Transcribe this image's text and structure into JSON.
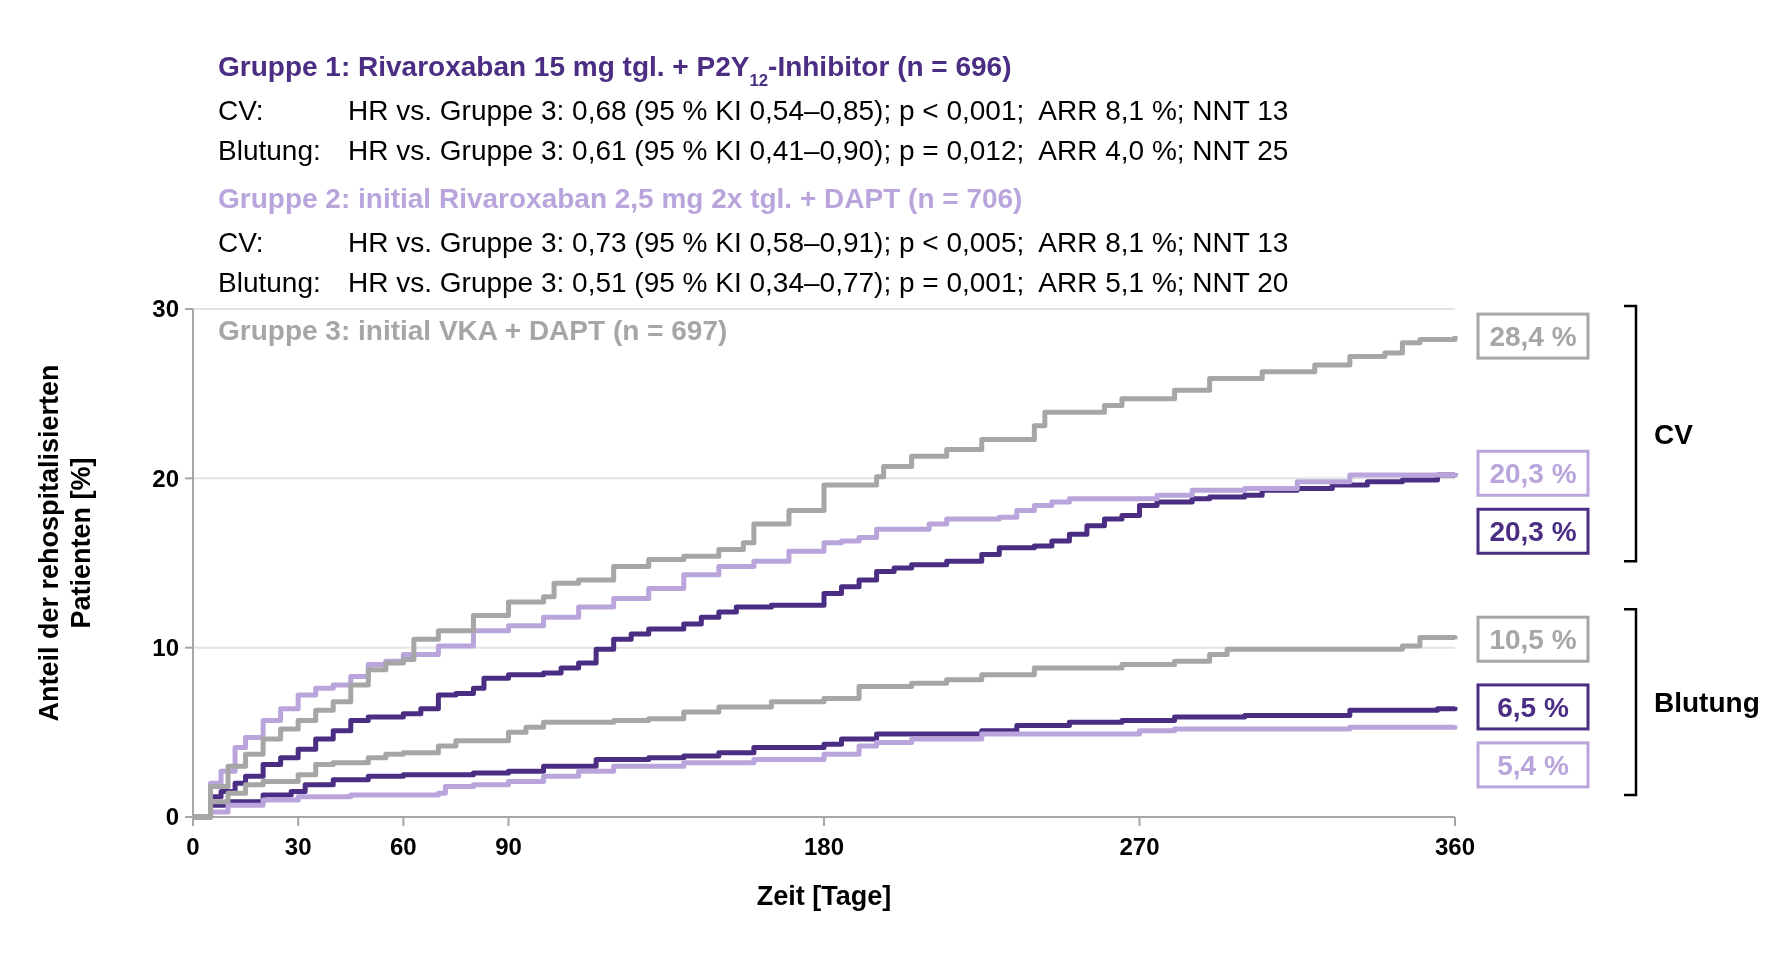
{
  "chart_data": {
    "type": "step",
    "xlabel": "Zeit [Tage]",
    "ylabel": "Anteil der rehospitalisierten Patienten [%]",
    "xlim": [
      0,
      360
    ],
    "xticks": [
      0,
      30,
      60,
      90,
      180,
      270,
      360
    ],
    "ylim": [
      0,
      30
    ],
    "yticks": [
      0,
      10,
      20,
      30
    ],
    "grid": "y",
    "legend": "top left",
    "line_style": "solid",
    "marker": "none",
    "annotations": [
      "CV: HR vs. Gruppe 3: 0,68 (95 % KI 0,54–0,85); p < 0,001;  ARR 8,1 %; NNT 13",
      "Blutung: HR vs. Gruppe 3: 0,61 (95 % KI 0,41–0,90); p = 0,012;  ARR 4,0 %; NNT 25",
      "CV: HR vs. Gruppe 3: 0,73 (95 % KI 0,58–0,91); p < 0,005;  ARR 8,1 %; NNT 13",
      "Blutung: HR vs. Gruppe 3: 0,51 (95 % KI 0,34–0,77); p = 0,001;  ARR 5,1 %; NNT 20",
      "CV",
      "Blutung"
    ],
    "series": [
      {
        "name": "Gruppe 1: Rivaroxaban 15 mg tgl. + P2Y$_{12}$-Inhibitor (n = 696)",
        "color": "#4b2e83",
        "x": [
          0,
          5,
          8,
          12,
          15,
          20,
          25,
          30,
          35,
          40,
          45,
          50,
          60,
          65,
          70,
          75,
          80,
          83,
          90,
          100,
          105,
          110,
          115,
          120,
          125,
          130,
          140,
          145,
          150,
          155,
          165,
          175,
          180,
          185,
          190,
          195,
          200,
          205,
          215,
          225,
          230,
          240,
          245,
          250,
          255,
          260,
          265,
          270,
          275,
          285,
          290,
          300,
          305,
          315,
          325,
          335,
          345,
          355,
          360
        ],
        "values": [
          0,
          1.2,
          1.5,
          2.0,
          2.4,
          3.1,
          3.5,
          4.0,
          4.6,
          5.1,
          5.7,
          5.9,
          6.1,
          6.4,
          7.2,
          7.3,
          7.6,
          8.2,
          8.4,
          8.5,
          8.8,
          9.1,
          9.9,
          10.5,
          10.8,
          11.1,
          11.4,
          11.8,
          12.1,
          12.4,
          12.5,
          12.5,
          13.2,
          13.6,
          14.0,
          14.5,
          14.7,
          14.9,
          15.1,
          15.5,
          15.9,
          16.0,
          16.3,
          16.7,
          17.2,
          17.6,
          17.8,
          18.4,
          18.6,
          18.8,
          18.9,
          19.0,
          19.3,
          19.4,
          19.6,
          19.8,
          19.9,
          20.2,
          20.3
        ],
        "value_labels": [
          null,
          null,
          null,
          null,
          null,
          null,
          null,
          null,
          null,
          null,
          null,
          null,
          null,
          null,
          null,
          null,
          null,
          null,
          null,
          null,
          null,
          null,
          null,
          null,
          null,
          null,
          null,
          null,
          null,
          null,
          null,
          null,
          null,
          null,
          null,
          null,
          null,
          null,
          null,
          null,
          null,
          null,
          null,
          null,
          null,
          null,
          null,
          null,
          null,
          null,
          null,
          null,
          null,
          null,
          null,
          null,
          null,
          null,
          "20,3 %"
        ]
      },
      {
        "color": "#4b2e83",
        "x": [
          0,
          5,
          10,
          20,
          28,
          32,
          40,
          50,
          60,
          80,
          90,
          100,
          115,
          130,
          140,
          150,
          160,
          180,
          185,
          195,
          225,
          235,
          250,
          265,
          280,
          300,
          325,
          330,
          355,
          360
        ],
        "values": [
          0,
          0.7,
          0.9,
          1.3,
          1.5,
          1.9,
          2.2,
          2.4,
          2.5,
          2.6,
          2.7,
          3.0,
          3.4,
          3.5,
          3.6,
          3.8,
          4.1,
          4.3,
          4.6,
          4.9,
          5.1,
          5.4,
          5.6,
          5.7,
          5.9,
          6.0,
          6.0,
          6.3,
          6.4,
          6.5
        ],
        "value_labels": [
          null,
          null,
          null,
          null,
          null,
          null,
          null,
          null,
          null,
          null,
          null,
          null,
          null,
          null,
          null,
          null,
          null,
          null,
          null,
          null,
          null,
          null,
          null,
          null,
          null,
          null,
          null,
          null,
          null,
          "6,5 %"
        ]
      },
      {
        "name": "Gruppe 2: initial Rivaroxaban 2,5 mg 2x tgl. + DAPT (n = 706)",
        "color": "#b9a5dc",
        "x": [
          0,
          5,
          8,
          12,
          15,
          20,
          25,
          30,
          35,
          40,
          45,
          50,
          55,
          60,
          70,
          80,
          90,
          100,
          110,
          120,
          130,
          140,
          150,
          160,
          170,
          180,
          185,
          190,
          195,
          210,
          215,
          230,
          235,
          240,
          245,
          250,
          265,
          275,
          285,
          300,
          315,
          330,
          360
        ],
        "values": [
          0,
          2.0,
          2.7,
          4.1,
          4.7,
          5.7,
          6.4,
          7.2,
          7.6,
          7.8,
          8.3,
          9.0,
          9.2,
          9.6,
          10.1,
          11.0,
          11.3,
          11.8,
          12.4,
          12.9,
          13.5,
          14.3,
          14.8,
          15.1,
          15.7,
          16.2,
          16.3,
          16.5,
          17.0,
          17.3,
          17.6,
          17.7,
          18.1,
          18.4,
          18.6,
          18.8,
          18.8,
          19.0,
          19.3,
          19.4,
          19.8,
          20.2,
          20.3
        ],
        "value_labels": [
          null,
          null,
          null,
          null,
          null,
          null,
          null,
          null,
          null,
          null,
          null,
          null,
          null,
          null,
          null,
          null,
          null,
          null,
          null,
          null,
          null,
          null,
          null,
          null,
          null,
          null,
          null,
          null,
          null,
          null,
          null,
          null,
          null,
          null,
          null,
          null,
          null,
          null,
          null,
          null,
          null,
          null,
          "20,3 %"
        ]
      },
      {
        "color": "#b9a5dc",
        "x": [
          0,
          5,
          10,
          20,
          30,
          45,
          60,
          70,
          72,
          80,
          90,
          100,
          110,
          120,
          140,
          160,
          180,
          190,
          195,
          205,
          225,
          270,
          280,
          330,
          360
        ],
        "values": [
          0,
          0.3,
          0.7,
          1.0,
          1.2,
          1.3,
          1.3,
          1.4,
          1.8,
          1.9,
          2.1,
          2.4,
          2.7,
          3.0,
          3.2,
          3.4,
          3.7,
          4.2,
          4.4,
          4.6,
          4.9,
          5.1,
          5.2,
          5.3,
          5.4
        ],
        "value_labels": [
          null,
          null,
          null,
          null,
          null,
          null,
          null,
          null,
          null,
          null,
          null,
          null,
          null,
          null,
          null,
          null,
          null,
          null,
          null,
          null,
          null,
          null,
          null,
          null,
          "5,4 %"
        ]
      },
      {
        "name": "Gruppe 3: initial VKA + DAPT (n = 697)",
        "color": "#a6a6a6",
        "x": [
          0,
          5,
          10,
          15,
          20,
          25,
          30,
          35,
          40,
          45,
          50,
          55,
          60,
          63,
          70,
          80,
          90,
          100,
          103,
          110,
          120,
          130,
          140,
          150,
          157,
          160,
          170,
          180,
          195,
          197,
          205,
          215,
          225,
          240,
          243,
          260,
          265,
          280,
          290,
          305,
          320,
          330,
          340,
          345,
          350,
          360
        ],
        "values": [
          0,
          1.8,
          3.0,
          3.7,
          4.6,
          5.2,
          5.7,
          6.3,
          6.8,
          7.8,
          8.7,
          9.1,
          9.3,
          10.5,
          11.0,
          11.9,
          12.7,
          13.0,
          13.8,
          14.0,
          14.8,
          15.2,
          15.4,
          15.8,
          16.2,
          17.3,
          18.1,
          19.6,
          20.1,
          20.7,
          21.3,
          21.7,
          22.3,
          23.1,
          23.9,
          24.3,
          24.7,
          25.2,
          25.9,
          26.3,
          26.7,
          27.2,
          27.4,
          28.0,
          28.2,
          28.4
        ],
        "value_labels": [
          null,
          null,
          null,
          null,
          null,
          null,
          null,
          null,
          null,
          null,
          null,
          null,
          null,
          null,
          null,
          null,
          null,
          null,
          null,
          null,
          null,
          null,
          null,
          null,
          null,
          null,
          null,
          null,
          null,
          null,
          null,
          null,
          null,
          null,
          null,
          null,
          null,
          null,
          null,
          null,
          null,
          null,
          null,
          null,
          null,
          "28,4 %"
        ]
      },
      {
        "color": "#a6a6a6",
        "x": [
          0,
          5,
          10,
          15,
          20,
          30,
          35,
          40,
          50,
          55,
          60,
          70,
          75,
          90,
          95,
          100,
          120,
          130,
          140,
          150,
          165,
          180,
          190,
          205,
          215,
          225,
          240,
          265,
          280,
          290,
          295,
          345,
          350,
          360
        ],
        "values": [
          0,
          0.9,
          1.4,
          1.9,
          2.1,
          2.5,
          3.1,
          3.2,
          3.5,
          3.7,
          3.8,
          4.2,
          4.5,
          5.0,
          5.3,
          5.6,
          5.7,
          5.8,
          6.2,
          6.5,
          6.8,
          7.0,
          7.7,
          7.9,
          8.1,
          8.4,
          8.8,
          9.0,
          9.2,
          9.6,
          9.9,
          10.1,
          10.6,
          10.5
        ],
        "value_labels": [
          null,
          null,
          null,
          null,
          null,
          null,
          null,
          null,
          null,
          null,
          null,
          null,
          null,
          null,
          null,
          null,
          null,
          null,
          null,
          null,
          null,
          null,
          null,
          null,
          null,
          null,
          null,
          null,
          null,
          null,
          null,
          null,
          null,
          "10,5 %"
        ]
      }
    ]
  }
}
